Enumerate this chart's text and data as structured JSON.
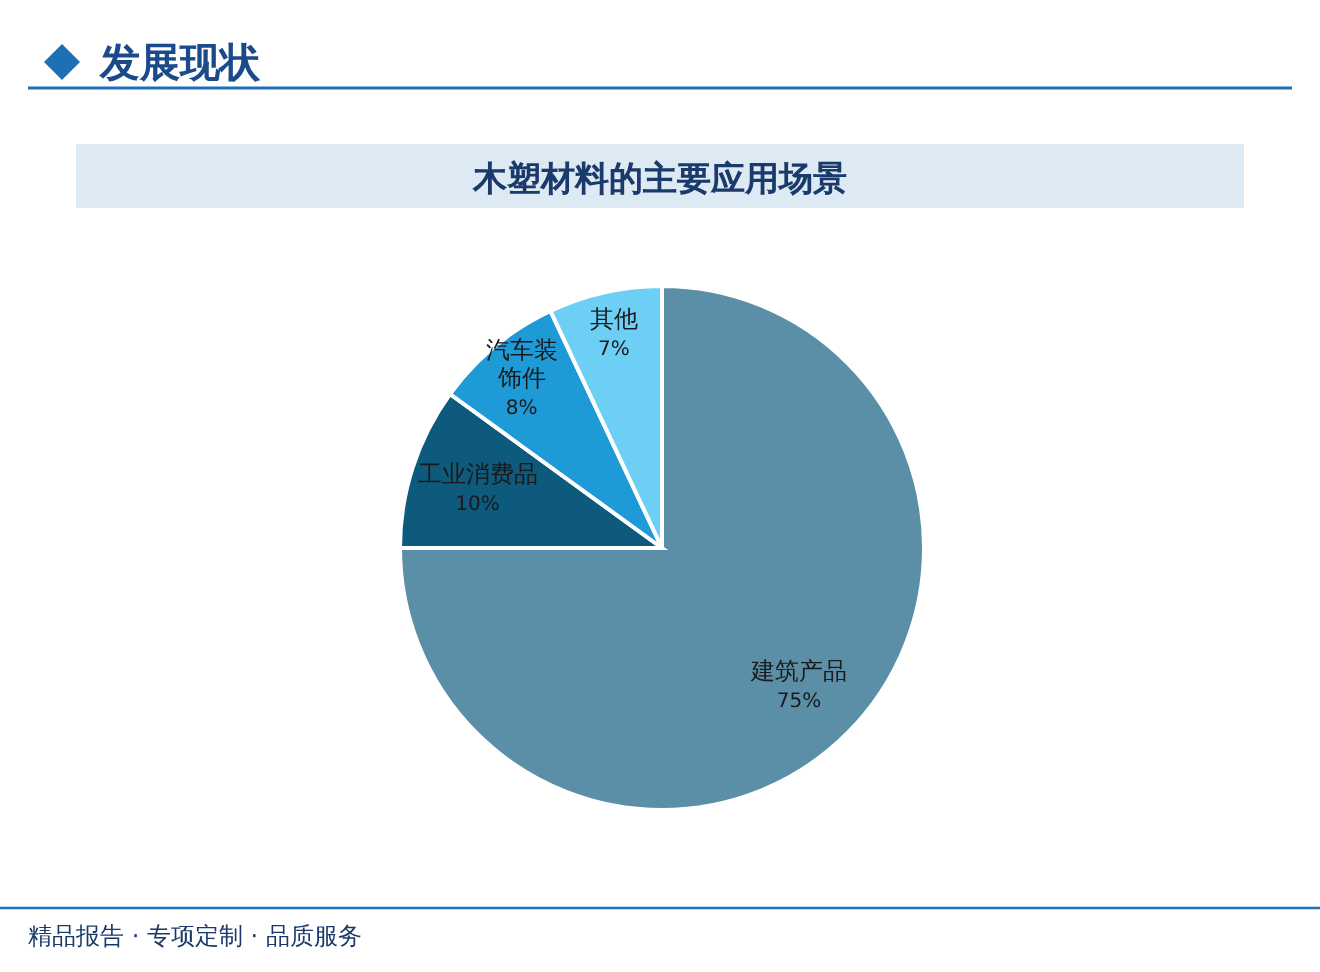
{
  "chart_data": {
    "type": "pie",
    "title": "木塑材料的主要应用场景",
    "categories": [
      "建筑产品",
      "工业消费品",
      "汽车装饰件",
      "其他"
    ],
    "values": [
      75,
      10,
      8,
      7
    ],
    "colors": [
      "#5b8fa8",
      "#0d5a7d",
      "#1e9ad6",
      "#6dcff6"
    ],
    "value_labels": [
      "75%",
      "10%",
      "8%",
      "7%"
    ],
    "annotations": [
      "发展现状",
      "精品报告 · 专项定制 · 品质服务"
    ]
  }
}
